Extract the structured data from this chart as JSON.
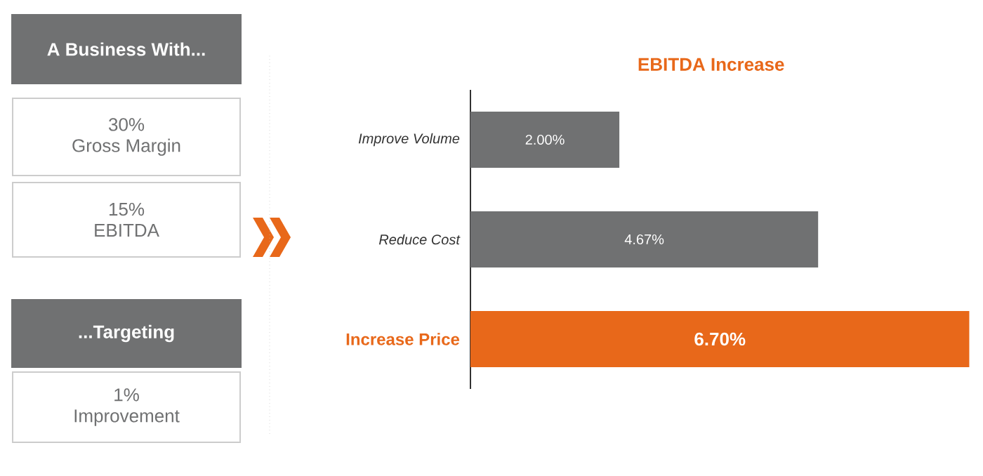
{
  "chart_data": {
    "type": "bar",
    "orientation": "horizontal",
    "title": "EBITDA Increase",
    "categories": [
      "Improve Volume",
      "Reduce Cost",
      "Increase Price"
    ],
    "values": [
      2.0,
      4.67,
      6.7
    ],
    "value_labels": [
      "2.00%",
      "4.67%",
      "6.70%"
    ],
    "colors": [
      "#707172",
      "#707172",
      "#e8681a"
    ],
    "annotations": [
      "A Business With...",
      "30%",
      "Gross Margin",
      "15%",
      "EBITDA",
      "...Targeting",
      "1%",
      "Improvement"
    ]
  }
}
